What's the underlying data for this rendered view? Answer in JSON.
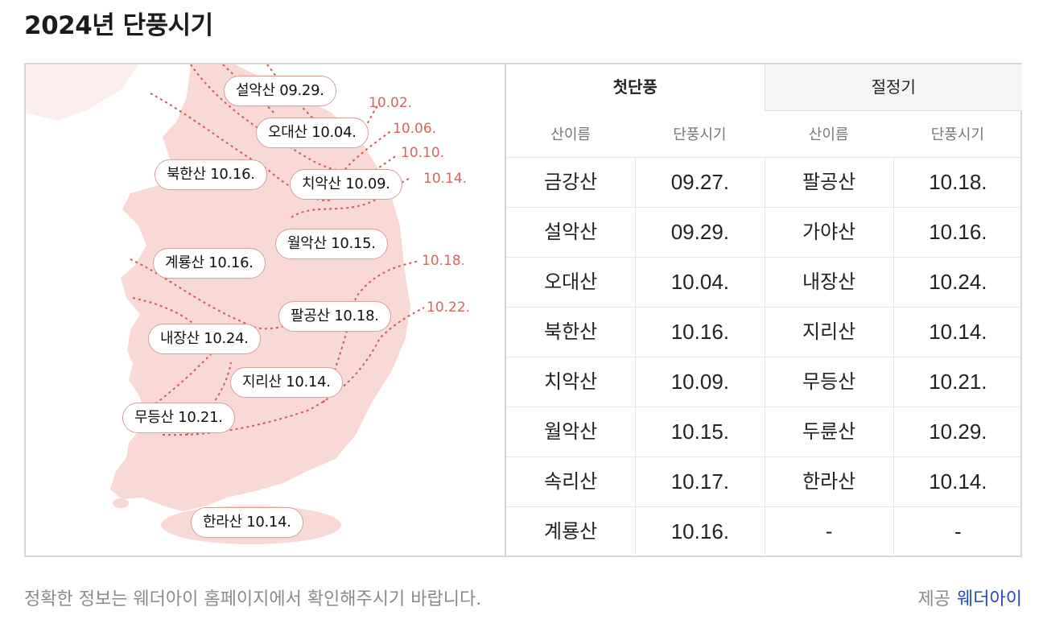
{
  "title": "2024년 단풍시기",
  "map": {
    "labels": [
      {
        "text": "설악산 09.29."
      },
      {
        "text": "오대산 10.04."
      },
      {
        "text": "북한산 10.16."
      },
      {
        "text": "치악산 10.09."
      },
      {
        "text": "월악산 10.15."
      },
      {
        "text": "계룡산 10.16."
      },
      {
        "text": "팔공산 10.18."
      },
      {
        "text": "내장산 10.24."
      },
      {
        "text": "지리산 10.14."
      },
      {
        "text": "무등산 10.21."
      },
      {
        "text": "한라산 10.14."
      }
    ],
    "date_lines": [
      "10.02.",
      "10.06.",
      "10.10.",
      "10.14.",
      "10.18.",
      "10.22."
    ],
    "colors": {
      "land": "#f9d9d5",
      "line": "#cf5a55",
      "accent": "#d8645f"
    }
  },
  "tabs": [
    {
      "label": "첫단풍",
      "active": true
    },
    {
      "label": "절정기",
      "active": false
    }
  ],
  "columns": [
    "산이름",
    "단풍시기",
    "산이름",
    "단풍시기"
  ],
  "rows": [
    [
      "금강산",
      "09.27.",
      "팔공산",
      "10.18."
    ],
    [
      "설악산",
      "09.29.",
      "가야산",
      "10.16."
    ],
    [
      "오대산",
      "10.04.",
      "내장산",
      "10.24."
    ],
    [
      "북한산",
      "10.16.",
      "지리산",
      "10.14."
    ],
    [
      "치악산",
      "10.09.",
      "무등산",
      "10.21."
    ],
    [
      "월악산",
      "10.15.",
      "두륜산",
      "10.29."
    ],
    [
      "속리산",
      "10.17.",
      "한라산",
      "10.14."
    ],
    [
      "계룡산",
      "10.16.",
      "-",
      "-"
    ]
  ],
  "footer": {
    "note": "정확한 정보는 웨더아이 홈페이지에서 확인해주시기 바랍니다.",
    "credit_prefix": "제공",
    "credit_link": "웨더아이"
  }
}
